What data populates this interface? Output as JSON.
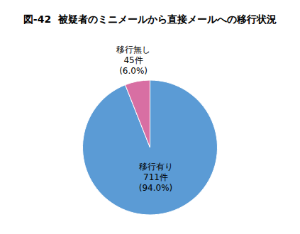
{
  "chart_data": {
    "type": "pie",
    "title": "被疑者のミニメールから直接メールへの移行状況",
    "subtitle": "図-42",
    "categories": [
      "移行有り",
      "移行無し"
    ],
    "values": [
      94.0,
      6.0
    ],
    "value_labels": [
      "711件\n(94.0%)",
      "45件\n(6.0%)"
    ],
    "colors": [
      "#5b9bd5",
      "#d86fa3"
    ],
    "data_labels": true
  }
}
